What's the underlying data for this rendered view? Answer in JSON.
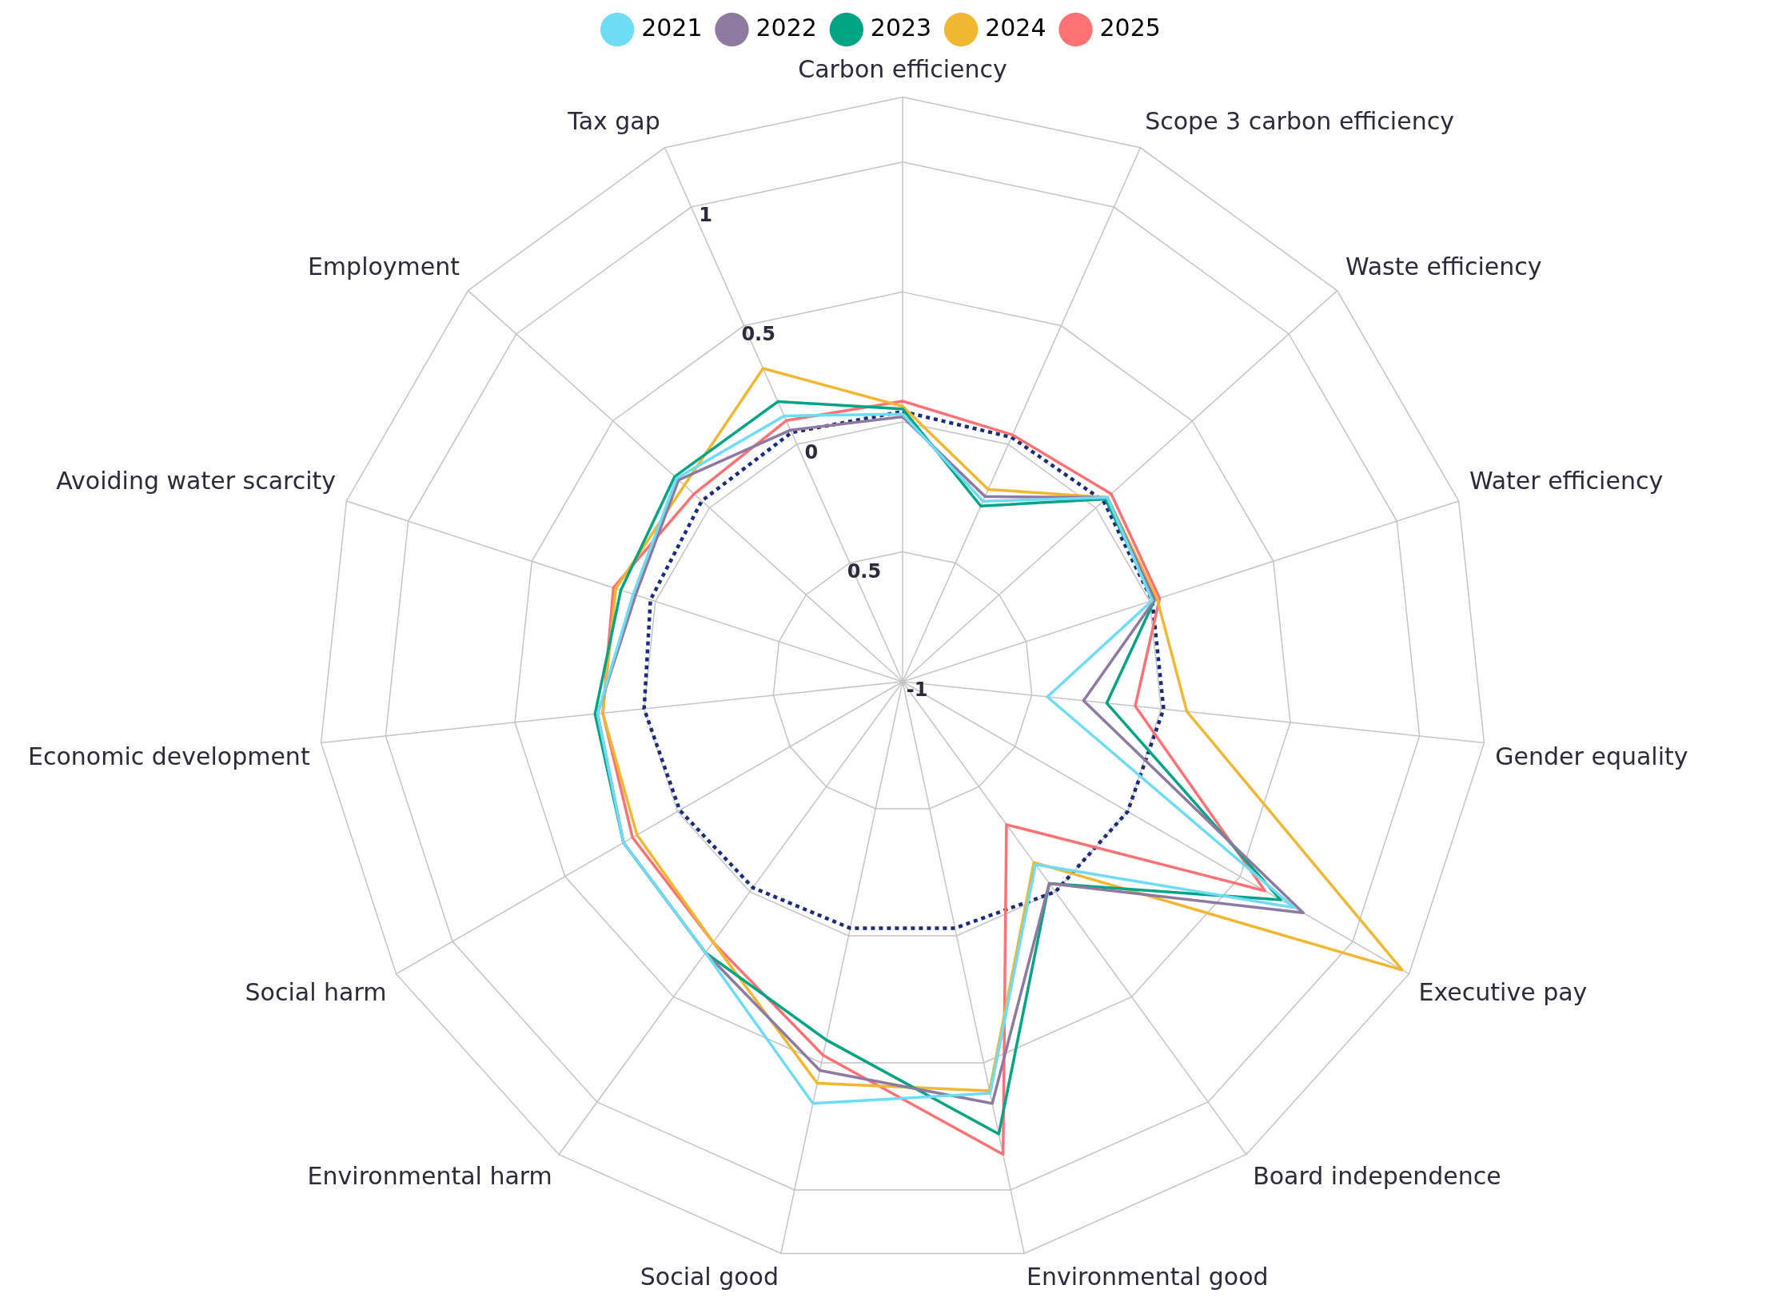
{
  "chart_data": {
    "type": "radar",
    "categories": [
      "Carbon efficiency",
      "Scope 3 carbon efficiency",
      "Waste efficiency",
      "Water efficiency",
      "Gender equality",
      "Executive pay",
      "Board independence",
      "Environmental good",
      "Social good",
      "Environmental harm",
      "Social harm",
      "Economic development",
      "Avoiding water scarcity",
      "Employment",
      "Tax gap"
    ],
    "series": [
      {
        "name": "2021",
        "color": "#6ddcf4",
        "values": [
          0.03,
          -0.24,
          0.06,
          0.01,
          -0.44,
          0.74,
          -0.13,
          0.62,
          0.66,
          0.29,
          0.24,
          0.18,
          0.09,
          0.17,
          0.12
        ]
      },
      {
        "name": "2022",
        "color": "#8e7aa0",
        "values": [
          0.02,
          -0.22,
          0.06,
          0.02,
          -0.3,
          0.78,
          -0.04,
          0.66,
          0.53,
          0.29,
          0.24,
          0.18,
          0.08,
          0.16,
          0.06
        ]
      },
      {
        "name": "2023",
        "color": "#00a383",
        "values": [
          0.05,
          -0.26,
          0.05,
          0.02,
          -0.21,
          0.68,
          -0.04,
          0.78,
          0.41,
          0.29,
          0.24,
          0.19,
          0.14,
          0.18,
          0.18
        ]
      },
      {
        "name": "2024",
        "color": "#f0b733",
        "values": [
          0.06,
          -0.19,
          0.06,
          0.03,
          0.1,
          1.22,
          -0.14,
          0.61,
          0.58,
          0.24,
          0.18,
          0.16,
          0.16,
          0.13,
          0.32
        ]
      },
      {
        "name": "2025",
        "color": "#fe7276",
        "values": [
          0.08,
          0.04,
          0.08,
          0.04,
          -0.1,
          0.61,
          -0.32,
          0.86,
          0.47,
          0.24,
          0.2,
          0.16,
          0.17,
          0.08,
          0.1
        ]
      },
      {
        "color": "#1d2c78",
        "line_style": "dotted",
        "values": [
          0.04,
          0.03,
          0.04,
          0.01,
          0.01,
          0,
          0,
          -0.03,
          -0.03,
          -0.02,
          -0.01,
          0,
          0.02,
          0.04,
          0.05
        ]
      }
    ],
    "ylim": [
      -1,
      1.25
    ],
    "yticks": [
      -1,
      {
        "value": -0.5,
        "label": "0.5"
      },
      0,
      0.5,
      1
    ],
    "grid": true,
    "legend": "top",
    "marker": "none",
    "line_style": "solid"
  }
}
